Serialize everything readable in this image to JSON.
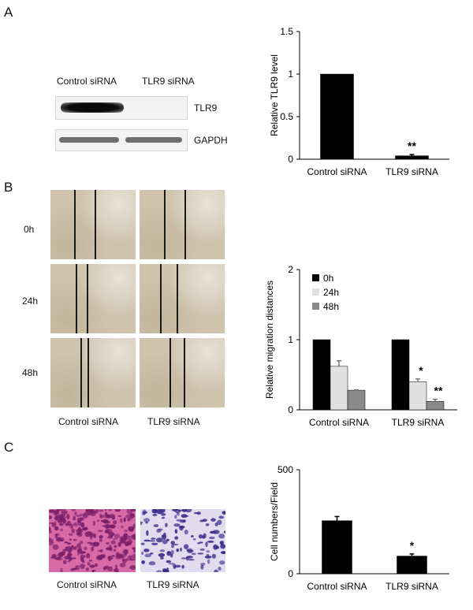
{
  "panels": {
    "a": "A",
    "b": "B",
    "c": "C"
  },
  "western_blot": {
    "lanes": [
      "Control siRNA",
      "TLR9 siRNA"
    ],
    "bands": [
      "TLR9",
      "GAPDH"
    ]
  },
  "scratch_assay": {
    "timepoints": [
      "0h",
      "24h",
      "48h"
    ],
    "columns": [
      "Control siRNA",
      "TLR9 siRNA"
    ]
  },
  "transwell": {
    "columns": [
      "Control siRNA",
      "TLR9 siRNA"
    ]
  },
  "colors": {
    "bar_dark": "#000000",
    "bar_light": "#e0e0e0",
    "bar_mid": "#8a8a8a",
    "scratch_bg": "#cfc3ae",
    "stain_control": "#d86aa8",
    "stain_tlr9": "#a996c9"
  },
  "chart_data": [
    {
      "type": "bar",
      "panel": "A",
      "categories": [
        "Control siRNA",
        "TLR9 siRNA"
      ],
      "values": [
        1.0,
        0.04
      ],
      "errors": [
        0.0,
        0.015
      ],
      "significance": [
        "",
        "**"
      ],
      "ylabel": "Relative TLR9  level",
      "ylim": [
        0,
        1.5
      ],
      "yticks": [
        "0",
        "0.5",
        "1",
        "1.5"
      ],
      "legend": "none"
    },
    {
      "type": "bar",
      "panel": "B",
      "categories": [
        "Control siRNA",
        "TLR9 siRNA"
      ],
      "series": [
        {
          "name": "0h",
          "values": [
            1.0,
            1.0
          ],
          "errors": [
            0.0,
            0.0
          ],
          "significance": [
            "",
            ""
          ]
        },
        {
          "name": "24h",
          "values": [
            0.62,
            0.4
          ],
          "errors": [
            0.08,
            0.04
          ],
          "significance": [
            "",
            "*"
          ]
        },
        {
          "name": "48h",
          "values": [
            0.28,
            0.12
          ],
          "errors": [
            0.005,
            0.03
          ],
          "significance": [
            "",
            "**"
          ]
        }
      ],
      "ylabel": "Relative migration distances",
      "ylim": [
        0,
        2
      ],
      "yticks": [
        "0",
        "1",
        "2"
      ],
      "legend": "top-left"
    },
    {
      "type": "bar",
      "panel": "C",
      "categories": [
        "Control siRNA",
        "TLR9 siRNA"
      ],
      "values": [
        255,
        85
      ],
      "errors": [
        20,
        10
      ],
      "significance": [
        "",
        "*"
      ],
      "ylabel": "Cell numbers/Field",
      "ylim": [
        0,
        500
      ],
      "yticks": [
        "0",
        "500"
      ],
      "legend": "none"
    }
  ]
}
